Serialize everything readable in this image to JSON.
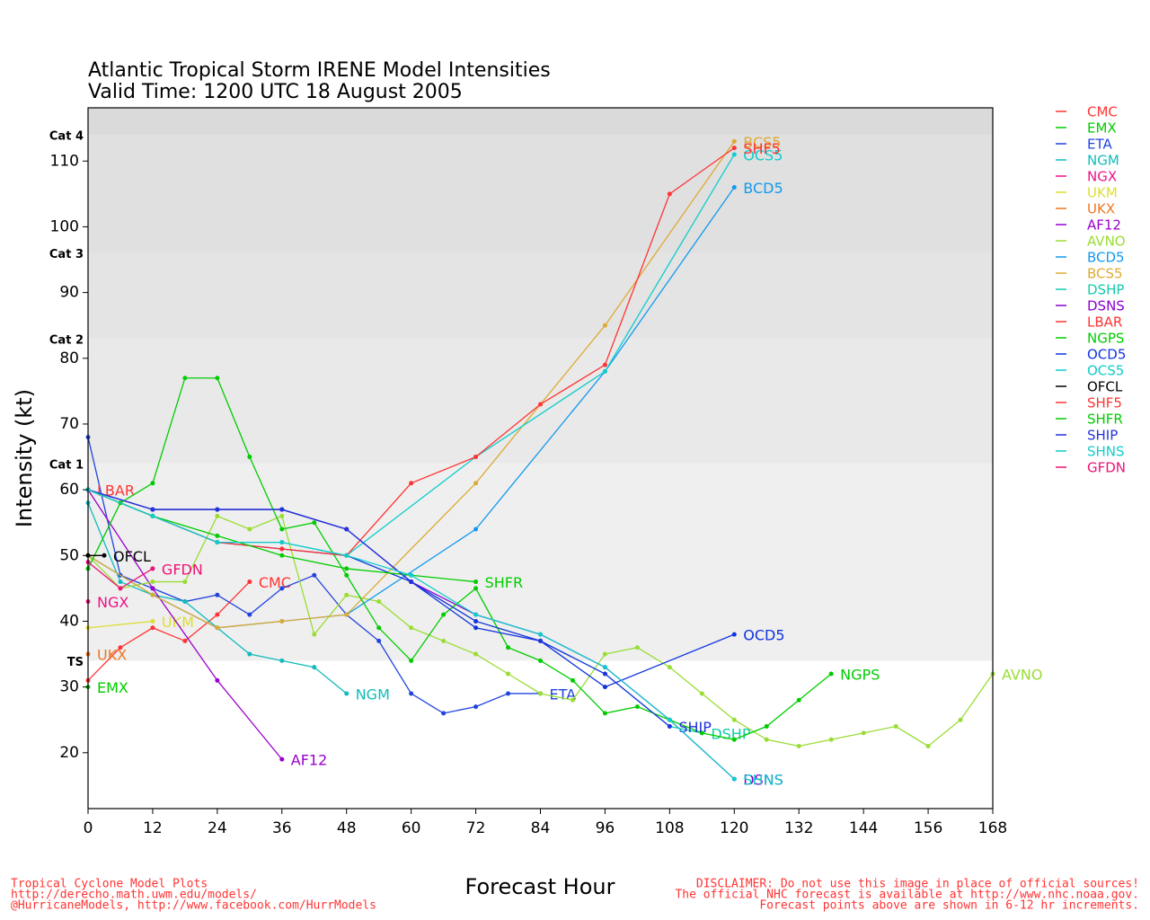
{
  "chart_data": {
    "type": "line",
    "title": "Atlantic Tropical Storm IRENE Model Intensities",
    "subtitle": "Valid Time: 1200 UTC 18 August 2005",
    "xlabel": "Forecast Hour",
    "ylabel": "Intensity (kt)",
    "xlim": [
      0,
      168
    ],
    "ylim": [
      11.5,
      118.1
    ],
    "xticks": [
      0,
      12,
      24,
      36,
      48,
      60,
      72,
      84,
      96,
      108,
      120,
      132,
      144,
      156,
      168
    ],
    "yticks": [
      20,
      30,
      40,
      50,
      60,
      70,
      80,
      90,
      100,
      110
    ],
    "bands": [
      {
        "label": "TS",
        "value": 34,
        "color": "#efefef"
      },
      {
        "label": "Cat 1",
        "value": 64,
        "color": "#e9e9e9"
      },
      {
        "label": "Cat 2",
        "value": 83,
        "color": "#e4e4e4"
      },
      {
        "label": "Cat 3",
        "value": 96,
        "color": "#e0e0e0"
      },
      {
        "label": "Cat 4",
        "value": 114,
        "color": "#dadada"
      }
    ],
    "series": [
      {
        "name": "CMC",
        "color": "#ff3333",
        "x": [
          0,
          6,
          12,
          18,
          24,
          30
        ],
        "values": [
          31,
          36,
          39,
          37,
          41,
          46
        ]
      },
      {
        "name": "EMX",
        "color": "#00cc00",
        "x": [
          0
        ],
        "values": [
          30
        ]
      },
      {
        "name": "ETA",
        "color": "#2244dd",
        "x": [
          0,
          6,
          12,
          18,
          24,
          30,
          36,
          42,
          48,
          54,
          60,
          66,
          72,
          78,
          84
        ],
        "values": [
          68,
          47,
          45,
          43,
          44,
          41,
          45,
          47,
          41,
          37,
          29,
          26,
          27,
          29,
          29
        ]
      },
      {
        "name": "NGM",
        "color": "#11bbbb",
        "x": [
          0,
          6,
          12,
          18,
          24,
          30,
          36,
          42,
          48
        ],
        "values": [
          58,
          46,
          44,
          43,
          39,
          35,
          34,
          33,
          29
        ]
      },
      {
        "name": "NGX",
        "color": "#ee1188",
        "x": [
          0
        ],
        "values": [
          43
        ]
      },
      {
        "name": "UKM",
        "color": "#dddd33",
        "x": [
          0,
          12
        ],
        "values": [
          39,
          40
        ]
      },
      {
        "name": "UKX",
        "color": "#ee7722",
        "x": [
          0
        ],
        "values": [
          35
        ]
      },
      {
        "name": "AF12",
        "color": "#9900cc",
        "x": [
          0,
          12,
          24,
          36
        ],
        "values": [
          60,
          45,
          31,
          19
        ]
      },
      {
        "name": "AVNO",
        "color": "#99dd33",
        "x": [
          0,
          6,
          12,
          18,
          24,
          30,
          36,
          42,
          48,
          54,
          60,
          66,
          72,
          78,
          84,
          90,
          96,
          102,
          108,
          114,
          120,
          126,
          132,
          138,
          144,
          150,
          156,
          162,
          168
        ],
        "values": [
          50,
          45,
          46,
          46,
          56,
          54,
          56,
          38,
          44,
          43,
          39,
          37,
          35,
          32,
          29,
          28,
          35,
          36,
          33,
          29,
          25,
          22,
          21,
          22,
          23,
          24,
          21,
          25,
          32
        ]
      },
      {
        "name": "BCD5",
        "color": "#1199ee",
        "x": [
          0,
          12,
          24,
          36,
          48,
          72,
          96,
          120
        ],
        "values": [
          50,
          44,
          39,
          40,
          41,
          54,
          78,
          106
        ]
      },
      {
        "name": "BCS5",
        "color": "#ddaa33",
        "x": [
          0,
          12,
          24,
          36,
          48,
          72,
          96,
          120
        ],
        "values": [
          50,
          44,
          39,
          40,
          41,
          61,
          85,
          113
        ]
      },
      {
        "name": "DSHP",
        "color": "#11ccaa",
        "x": [
          0,
          12,
          24,
          36,
          48,
          60,
          72,
          84,
          96,
          108,
          114
        ],
        "values": [
          60,
          57,
          57,
          57,
          54,
          46,
          40,
          37,
          32,
          24,
          23
        ]
      },
      {
        "name": "DSNS",
        "color": "#8800cc",
        "x": [
          0,
          12,
          24,
          36,
          48,
          60,
          72,
          84,
          96,
          108,
          120
        ],
        "values": [
          60,
          57,
          57,
          57,
          54,
          46,
          41,
          38,
          33,
          25,
          16
        ]
      },
      {
        "name": "LBAR",
        "color": "#ff3333",
        "x": [
          0
        ],
        "values": [
          60
        ]
      },
      {
        "name": "NGPS",
        "color": "#00cc00",
        "x": [
          0,
          6,
          12,
          18,
          24,
          30,
          36,
          42,
          48,
          54,
          60,
          66,
          72,
          78,
          84,
          90,
          96,
          102,
          108,
          114,
          120,
          126,
          132,
          138
        ],
        "values": [
          48,
          58,
          61,
          77,
          77,
          65,
          54,
          55,
          47,
          39,
          34,
          41,
          45,
          36,
          34,
          31,
          26,
          27,
          25,
          23,
          22,
          24,
          28,
          32
        ]
      },
      {
        "name": "OCD5",
        "color": "#1133dd",
        "x": [
          0,
          12,
          24,
          36,
          48,
          60,
          72,
          84,
          96,
          120
        ],
        "values": [
          60,
          56,
          52,
          51,
          50,
          46,
          39,
          37,
          30,
          38
        ]
      },
      {
        "name": "OCS5",
        "color": "#11cccc",
        "x": [
          0,
          12,
          24,
          36,
          48,
          72,
          96,
          120
        ],
        "values": [
          60,
          56,
          52,
          52,
          50,
          65,
          78,
          111
        ]
      },
      {
        "name": "OFCL",
        "color": "#000000",
        "x": [
          0,
          3
        ],
        "values": [
          50,
          50
        ]
      },
      {
        "name": "SHF5",
        "color": "#ff3333",
        "x": [
          0,
          12,
          24,
          36,
          48,
          60,
          72,
          84,
          96,
          108,
          120
        ],
        "values": [
          60,
          56,
          52,
          51,
          50,
          61,
          65,
          73,
          79,
          105,
          112
        ]
      },
      {
        "name": "SHFR",
        "color": "#00cc00",
        "x": [
          0,
          12,
          24,
          36,
          48,
          60,
          72
        ],
        "values": [
          60,
          56,
          53,
          50,
          48,
          47,
          46
        ]
      },
      {
        "name": "SHIP",
        "color": "#2233dd",
        "x": [
          0,
          12,
          24,
          36,
          48,
          60,
          72,
          84,
          96,
          108
        ],
        "values": [
          60,
          57,
          57,
          57,
          54,
          46,
          40,
          37,
          32,
          24
        ]
      },
      {
        "name": "SHNS",
        "color": "#11cccc",
        "x": [
          0,
          12,
          24,
          36,
          48,
          60,
          72,
          84,
          96,
          108,
          120
        ],
        "values": [
          60,
          56,
          52,
          52,
          50,
          47,
          41,
          38,
          33,
          25,
          16
        ]
      },
      {
        "name": "GFDN",
        "color": "#ee1177",
        "x": [
          0,
          6,
          12
        ],
        "values": [
          49,
          45,
          48
        ]
      }
    ],
    "footer_left": [
      "Tropical Cyclone Model Plots",
      "http://derecho.math.uwm.edu/models/",
      "@HurricaneModels, http://www.facebook.com/HurrModels"
    ],
    "footer_right": [
      "DISCLAIMER: Do not use this image in place of official sources!",
      "The official NHC forecast is available at http://www.nhc.noaa.gov.",
      "Forecast points above are shown in 6-12 hr increments."
    ]
  }
}
